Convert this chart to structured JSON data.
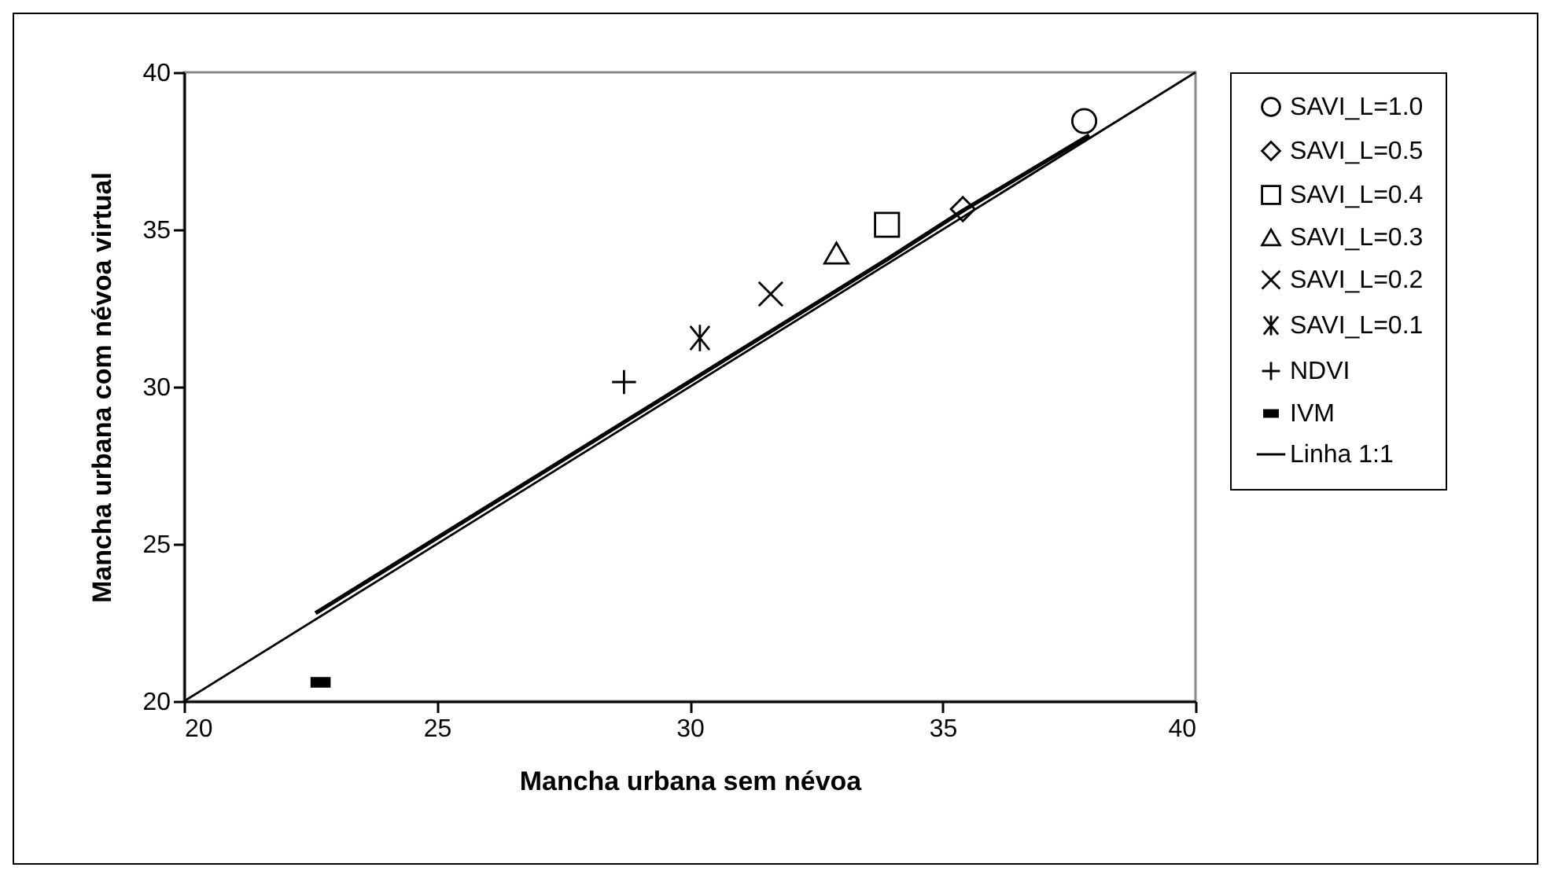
{
  "chart_data": {
    "type": "scatter",
    "xlabel": "Mancha urbana sem névoa",
    "ylabel": "Mancha urbana com névoa virtual",
    "xlim": [
      20,
      40
    ],
    "ylim": [
      20,
      40
    ],
    "xticks": [
      20,
      25,
      30,
      35,
      40
    ],
    "yticks": [
      20,
      25,
      30,
      35,
      40
    ],
    "legend": "right",
    "grid": false,
    "series": [
      {
        "name": "SAVI_L=1.0",
        "color": "#000000",
        "marker": "circle",
        "x": [
          37.8
        ],
        "values": [
          38.45
        ]
      },
      {
        "name": "SAVI_L=0.5",
        "color": "#000000",
        "marker": "diamond",
        "x": [
          35.4
        ],
        "values": [
          35.65
        ]
      },
      {
        "name": "SAVI_L=0.4",
        "color": "#000000",
        "marker": "square",
        "x": [
          33.9
        ],
        "values": [
          35.15
        ]
      },
      {
        "name": "SAVI_L=0.3",
        "color": "#000000",
        "marker": "triangle",
        "x": [
          32.9
        ],
        "values": [
          34.25
        ]
      },
      {
        "name": "SAVI_L=0.2",
        "color": "#000000",
        "marker": "cross",
        "x": [
          31.6
        ],
        "values": [
          32.95
        ]
      },
      {
        "name": "SAVI_L=0.1",
        "color": "#000000",
        "x": [
          30.2
        ],
        "values": [
          31.55
        ]
      },
      {
        "name": "NDVI",
        "color": "#000000",
        "x": [
          28.7
        ],
        "values": [
          30.15
        ]
      },
      {
        "name": "IVM",
        "color": "#000000",
        "x": [
          22.7
        ],
        "values": [
          20.6
        ]
      },
      {
        "name": "Linha 1:1",
        "type": "line",
        "color": "#000000",
        "x": [
          20,
          40
        ],
        "values": [
          20,
          40
        ]
      },
      {
        "type": "line",
        "color": "#000000",
        "x": [
          22.6,
          33.9,
          35.4,
          37.9
        ],
        "values": [
          22.8,
          34.05,
          35.6,
          38.0
        ]
      }
    ]
  }
}
